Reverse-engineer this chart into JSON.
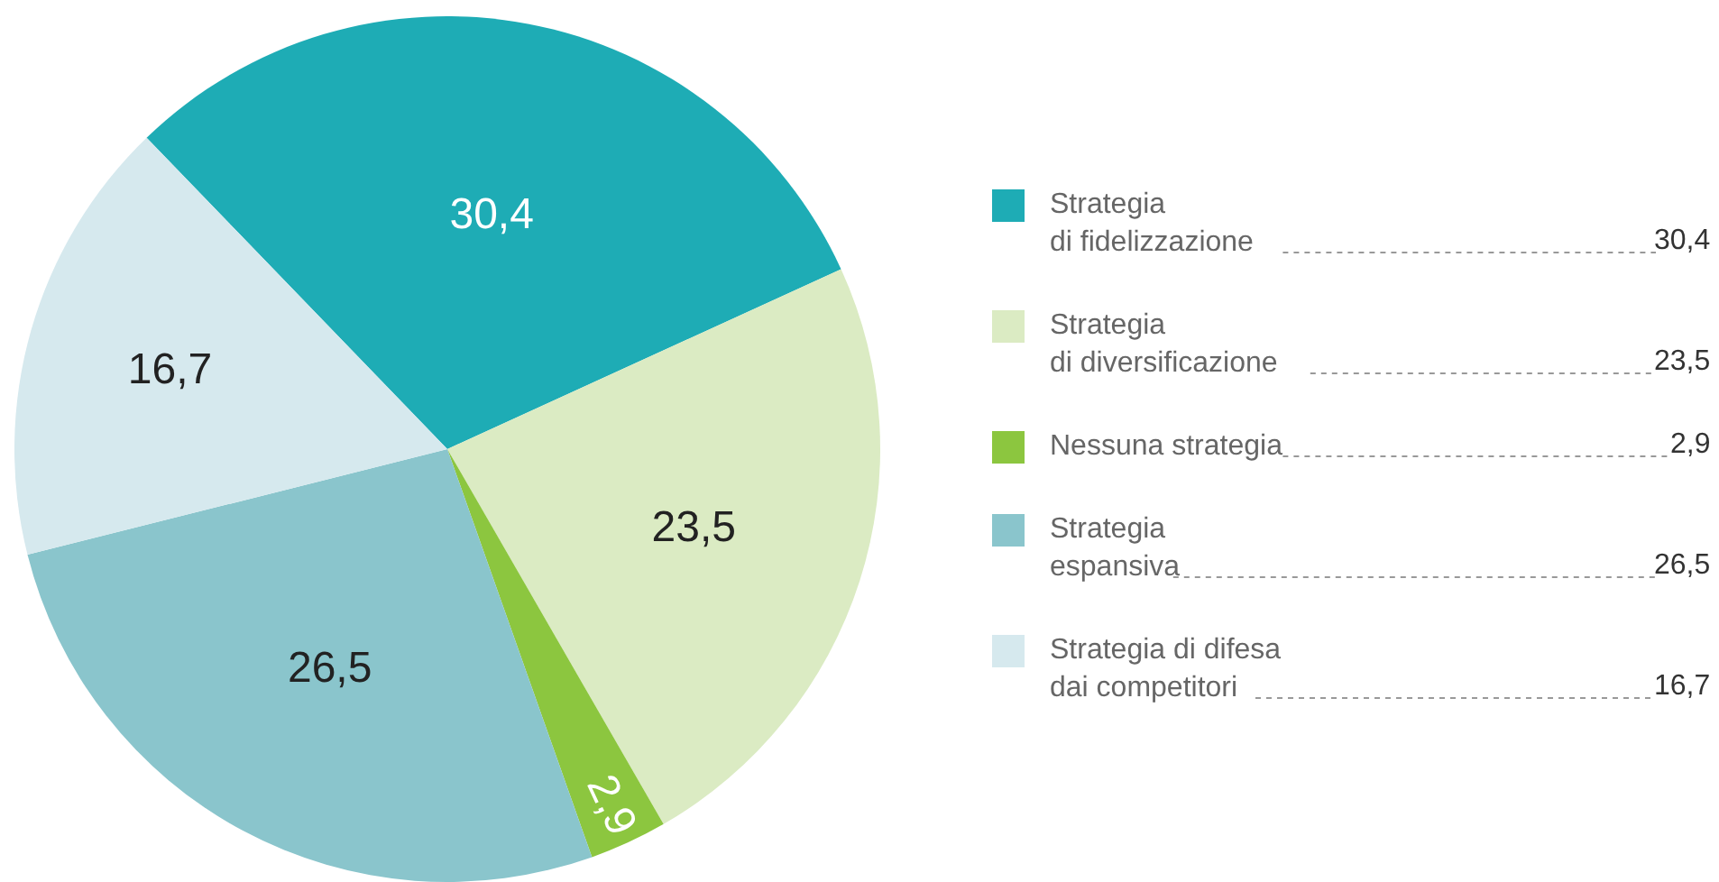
{
  "chart_data": {
    "type": "pie",
    "categories": [
      "Strategia\ndi fidelizzazione",
      "Strategia\ndi diversificazione",
      "Nessuna strategia",
      "Strategia\nespansiva",
      "Strategia di difesa\ndai competitori"
    ],
    "values": [
      30.4,
      23.5,
      2.9,
      26.5,
      16.7
    ],
    "value_labels": [
      "30,4",
      "23,5",
      "2,9",
      "26,5",
      "16,7"
    ],
    "colors": [
      "#1eacb5",
      "#dbebc3",
      "#8cc63f",
      "#8ac5cc",
      "#d6e9ee"
    ],
    "legend": "right"
  }
}
